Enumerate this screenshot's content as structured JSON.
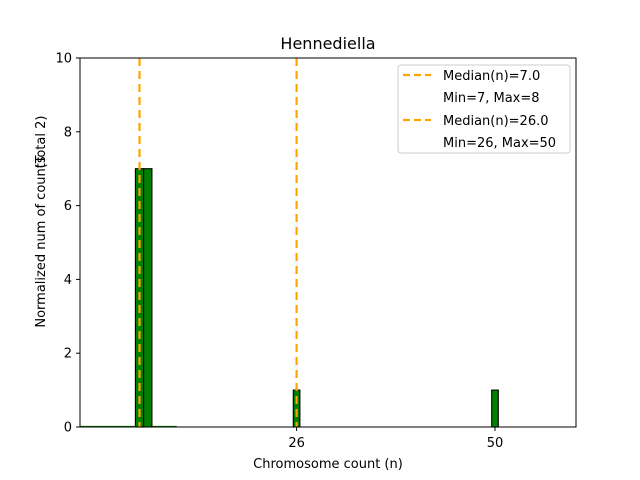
{
  "chart_data": {
    "type": "bar",
    "title": "Hennediella",
    "xlabel": "Chromosome count (n)",
    "ylabel": "Normalized num of counts",
    "ylabel_secondary": "(Total 2)",
    "xlim": [
      -0.2,
      59.8
    ],
    "ylim": [
      0,
      10
    ],
    "yticks": [
      0,
      2,
      4,
      6,
      8,
      10
    ],
    "xticks": [
      26,
      50
    ],
    "bar_color": "#008000",
    "edge_color": "#000000",
    "median_color": "#FFA500",
    "bars": [
      {
        "x_left": 6.5,
        "x_right": 7.5,
        "value": 7
      },
      {
        "x_left": 7.5,
        "x_right": 8.5,
        "value": 7
      },
      {
        "x_left": 25.6,
        "x_right": 26.4,
        "value": 1
      },
      {
        "x_left": 49.6,
        "x_right": 50.4,
        "value": 1
      }
    ],
    "baseline_segments": [
      {
        "x_start": -0.2,
        "x_end": 11.5
      }
    ],
    "medians": [
      7.0,
      26.0
    ],
    "legend": {
      "location": "upper right",
      "entries": [
        {
          "label": "Median(n)=7.0",
          "type": "dashed"
        },
        {
          "label": "Min=7, Max=8",
          "type": "blank"
        },
        {
          "label": "Median(n)=26.0",
          "type": "dashed"
        },
        {
          "label": "Min=26, Max=50",
          "type": "blank"
        }
      ]
    }
  }
}
